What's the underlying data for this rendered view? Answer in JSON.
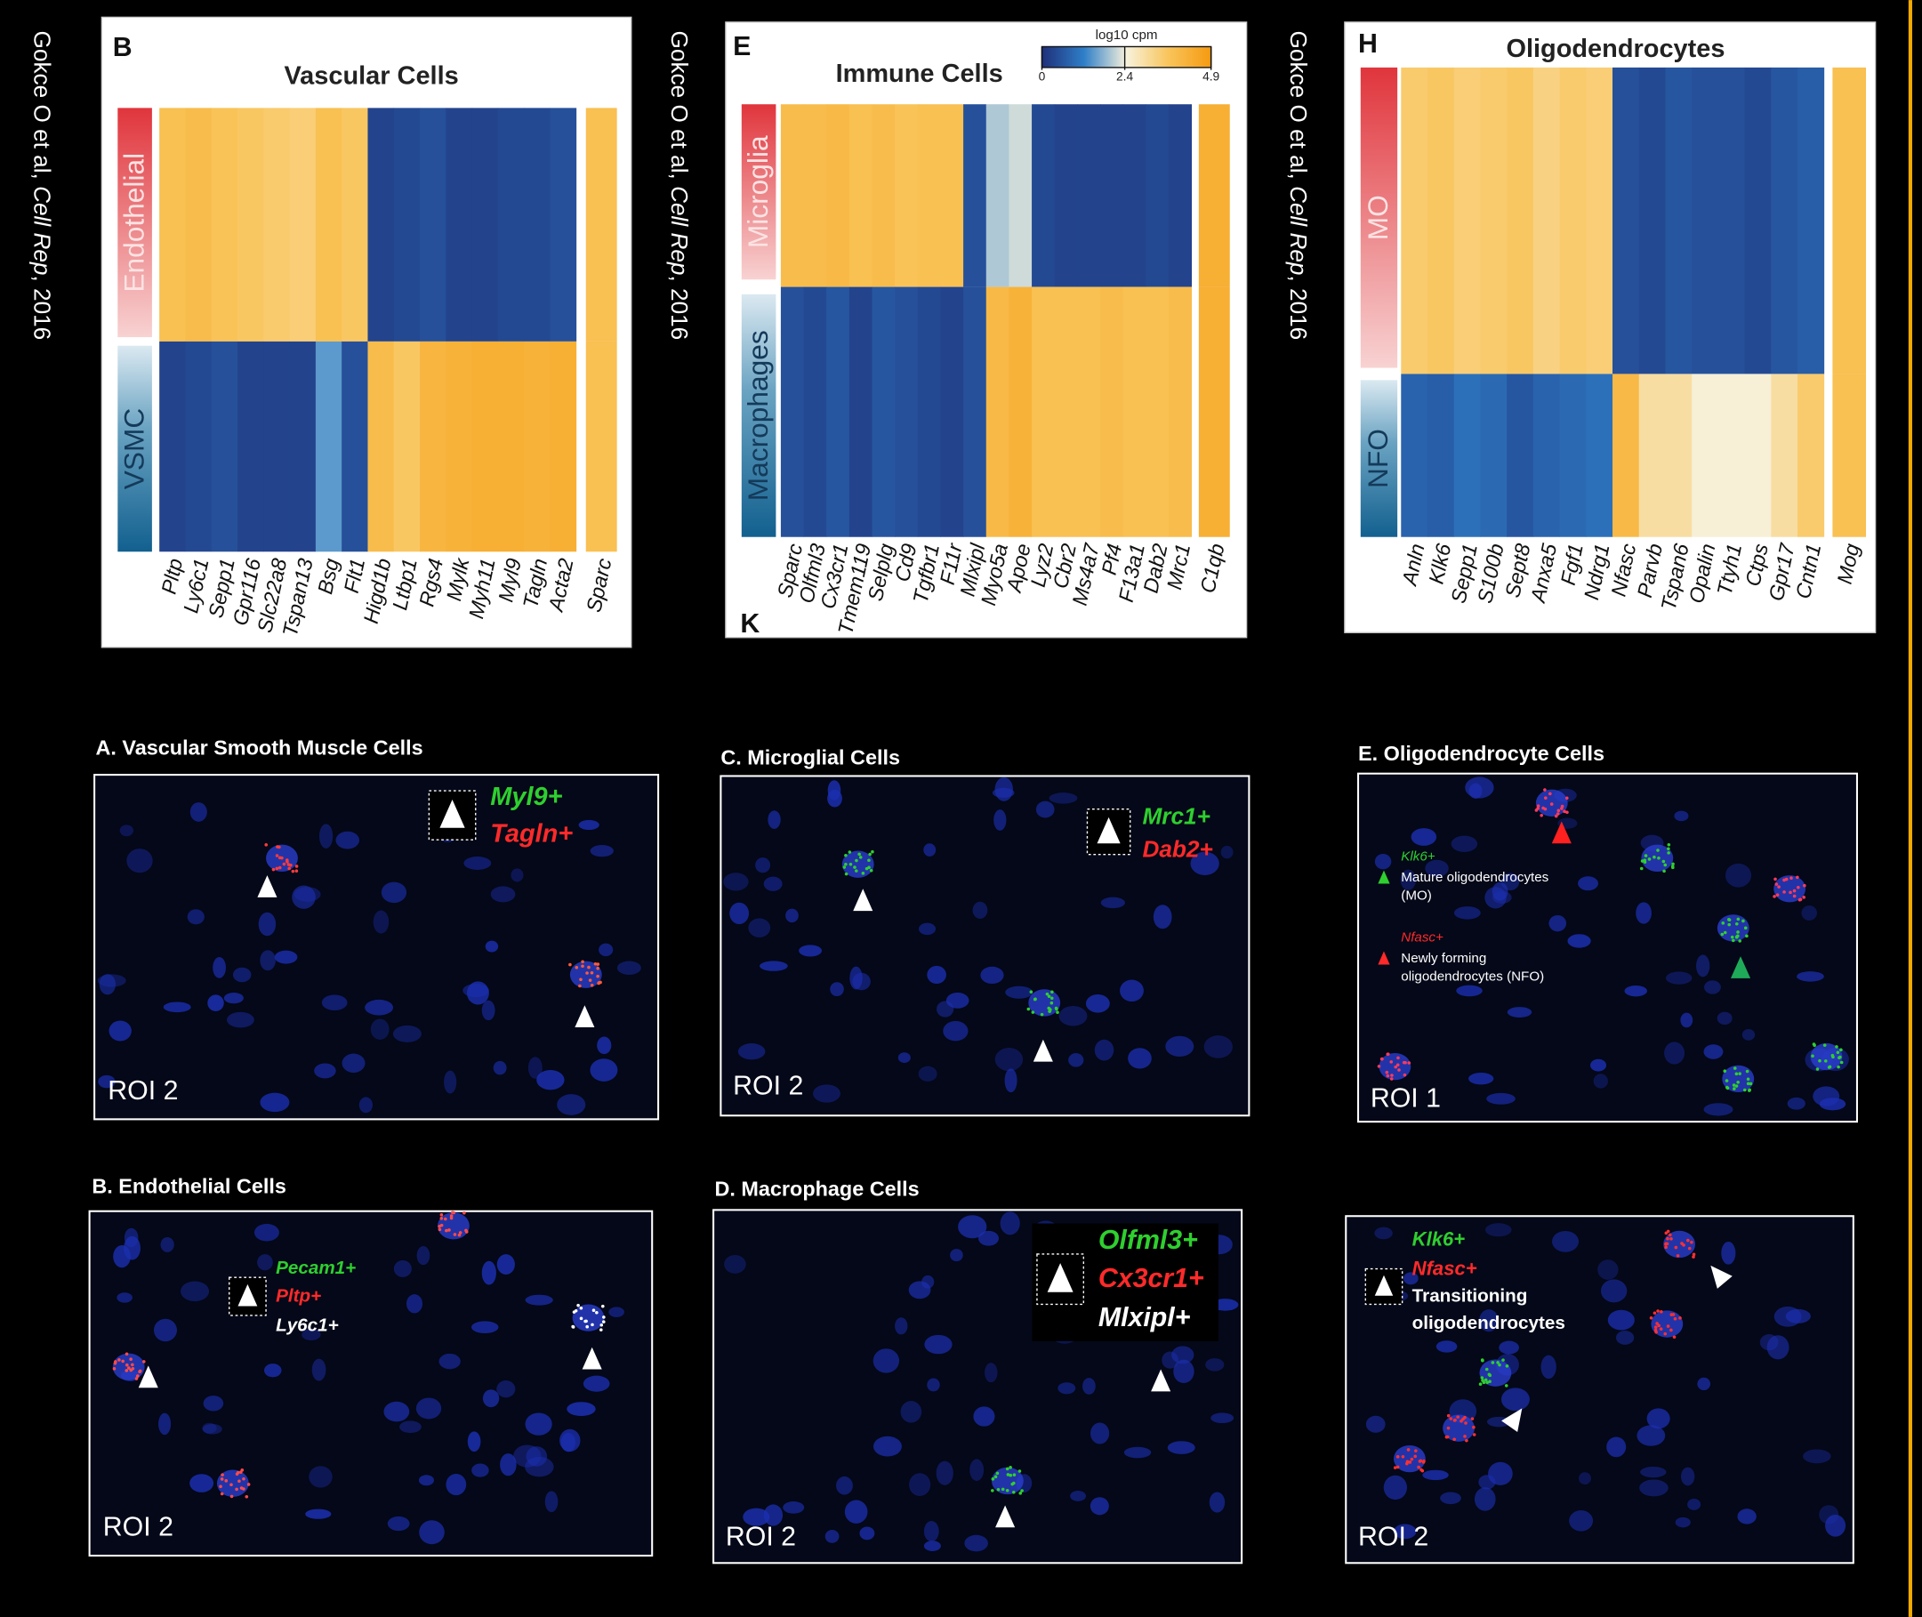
{
  "citations": [
    {
      "before": "Gokce O et al, ",
      "journal": "Cell Rep",
      "after": ", 2016"
    },
    {
      "before": "Gokce O et al, ",
      "journal": "Cell Rep",
      "after": ", 2016"
    },
    {
      "before": "Gokce O et al, ",
      "journal": "Cell Rep",
      "after": ", 2016"
    }
  ],
  "color_scale": {
    "colors": [
      "#1f2f7a",
      "#2f7fc8",
      "#f7f2dc",
      "#f9c45a",
      "#f59a10"
    ],
    "lim": [
      0,
      4.9
    ]
  },
  "heatmaps": [
    {
      "letter": "B",
      "title": "Vascular Cells",
      "genes": [
        "Pltp",
        "Ly6c1",
        "Sepp1",
        "Gpr116",
        "Slc22a8",
        "Tspan13",
        "Bsg",
        "Flt1",
        "Higd1b",
        "Ltbp1",
        "Rgs4",
        "Mylk",
        "Myh11",
        "Myl9",
        "Tagln",
        "Acta2",
        "Sparc"
      ],
      "groups": [
        {
          "name": "Endothelial",
          "values": [
            3.8,
            3.9,
            3.7,
            3.6,
            3.5,
            3.4,
            3.8,
            3.6,
            0.3,
            0.4,
            0.5,
            0.3,
            0.3,
            0.4,
            0.4,
            0.5,
            3.8
          ]
        },
        {
          "name": "VSMC",
          "values": [
            0.3,
            0.4,
            0.5,
            0.3,
            0.3,
            0.3,
            1.5,
            0.5,
            3.9,
            3.6,
            4.1,
            4.2,
            4.3,
            4.3,
            4.2,
            4.3,
            3.8
          ]
        }
      ]
    },
    {
      "letter": "E",
      "title": "Immune Cells",
      "extra_letter": "K",
      "colorbar": {
        "label": "log10 cpm",
        "ticks": [
          0,
          2.4,
          4.9
        ]
      },
      "genes": [
        "Sparc",
        "Olfml3",
        "Cx3cr1",
        "Tmem119",
        "Selplg",
        "Cd9",
        "Tgfbr1",
        "F11r",
        "Mlxipl",
        "Myo5a",
        "Apoe",
        "Lyz2",
        "Cbr2",
        "Ms4a7",
        "Pf4",
        "F13a1",
        "Dab2",
        "Mrc1",
        "C1qb"
      ],
      "groups": [
        {
          "name": "Microglia",
          "values": [
            3.9,
            3.9,
            4.0,
            3.8,
            3.9,
            3.7,
            3.8,
            3.8,
            0.5,
            2.0,
            2.2,
            0.4,
            0.3,
            0.3,
            0.3,
            0.3,
            0.4,
            0.3,
            4.3
          ]
        },
        {
          "name": "Macrophages",
          "values": [
            0.5,
            0.4,
            0.6,
            0.3,
            0.6,
            0.5,
            0.4,
            0.3,
            0.5,
            4.0,
            4.2,
            3.8,
            3.8,
            3.8,
            3.9,
            3.8,
            3.8,
            3.9,
            4.3
          ]
        }
      ]
    },
    {
      "letter": "H",
      "title": "Oligodendrocytes",
      "genes": [
        "Anln",
        "Klk6",
        "Sepp1",
        "S100b",
        "Sept8",
        "Anxa5",
        "Fgf1",
        "Ndrg1",
        "Nfasc",
        "Parvb",
        "Tspan6",
        "Opalin",
        "Ttyh1",
        "Ctps",
        "Gpr17",
        "Cntn1",
        "Mog"
      ],
      "groups": [
        {
          "name": "MO",
          "values": [
            3.5,
            3.6,
            3.4,
            3.5,
            3.6,
            3.3,
            3.5,
            3.4,
            0.5,
            0.4,
            0.6,
            0.5,
            0.5,
            0.4,
            0.6,
            0.7,
            3.8
          ]
        },
        {
          "name": "NFO",
          "values": [
            0.8,
            0.7,
            1.0,
            0.9,
            0.6,
            0.8,
            0.9,
            1.0,
            4.0,
            3.0,
            3.0,
            2.5,
            2.5,
            2.5,
            3.0,
            3.5,
            3.8
          ]
        }
      ]
    }
  ],
  "panels": [
    {
      "title": "A. Vascular Smooth Muscle Cells",
      "markers": [
        {
          "text": "Myl9+",
          "color": "#2fcf2f"
        },
        {
          "text": "Tagln+",
          "color": "#ff2a2a"
        }
      ],
      "roi": "ROI 2"
    },
    {
      "title": "B. Endothelial Cells",
      "markers": [
        {
          "text": "Pecam1+",
          "color": "#2fcf2f"
        },
        {
          "text": "Pltp+",
          "color": "#ff2a2a"
        },
        {
          "text": "Ly6c1+",
          "color": "#ffffff"
        }
      ],
      "roi": "ROI 2"
    },
    {
      "title": "C. Microglial Cells",
      "markers": [
        {
          "text": "Mrc1+",
          "color": "#2fcf2f"
        },
        {
          "text": "Dab2+",
          "color": "#ff2a2a"
        }
      ],
      "roi": "ROI 2"
    },
    {
      "title": "D. Macrophage Cells",
      "markers": [
        {
          "text": "Olfml3+",
          "color": "#2fcf2f"
        },
        {
          "text": "Cx3cr1+",
          "color": "#ff2a2a"
        },
        {
          "text": "Mlxipl+",
          "color": "#ffffff"
        }
      ],
      "roi": "ROI 2"
    },
    {
      "title": "E. Oligodendrocyte Cells",
      "legend": [
        {
          "marker": {
            "text": "Klk6+",
            "color": "#2fcf2f"
          },
          "lines": [
            "Mature oligodendrocytes",
            "(MO)"
          ]
        },
        {
          "marker": {
            "text": "Nfasc+",
            "color": "#ff2a2a"
          },
          "lines": [
            "Newly forming",
            "oligodendrocytes (NFO)"
          ]
        }
      ],
      "roi": "ROI 1"
    },
    {
      "markers": [
        {
          "text": "Klk6+",
          "color": "#2fcf2f"
        },
        {
          "text": "Nfasc+",
          "color": "#ff2a2a"
        }
      ],
      "note_lines": [
        "Transitioning",
        "oligodendrocytes"
      ],
      "roi": "ROI 2"
    }
  ]
}
